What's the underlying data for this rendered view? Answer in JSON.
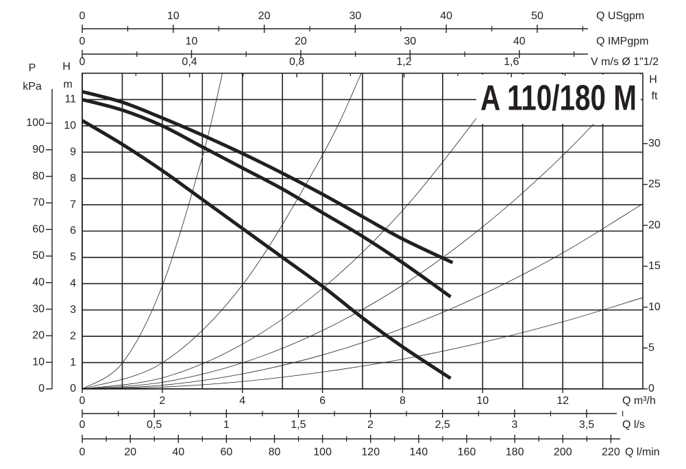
{
  "chart_data": {
    "type": "line",
    "title": "A 110/180 M",
    "xlabel": "Q m³/h",
    "xlim": [
      0,
      14
    ],
    "xticks": [
      0,
      2,
      4,
      6,
      8,
      10,
      12
    ],
    "xminor": [
      1,
      3,
      5,
      7,
      9,
      11,
      13
    ],
    "ylabel": "H",
    "yunit": "m",
    "ylim": [
      0,
      12
    ],
    "yticks": [
      0,
      1,
      2,
      3,
      4,
      5,
      6,
      7,
      8,
      9,
      10,
      11
    ],
    "grid": true,
    "series": [
      {
        "color": "#231f20",
        "width": 5,
        "x": [
          0,
          1,
          2,
          3,
          4,
          5,
          6,
          7,
          8,
          9.25
        ],
        "values": [
          11.3,
          10.9,
          10.3,
          9.65,
          8.95,
          8.2,
          7.4,
          6.55,
          5.7,
          4.8
        ]
      },
      {
        "color": "#231f20",
        "width": 5,
        "x": [
          0,
          1,
          2,
          3,
          4,
          5,
          6,
          7,
          8,
          9.2
        ],
        "values": [
          11.0,
          10.6,
          10.0,
          9.2,
          8.4,
          7.6,
          6.7,
          5.8,
          4.8,
          3.5
        ]
      },
      {
        "color": "#231f20",
        "width": 5,
        "x": [
          0,
          1,
          2,
          3,
          4,
          5,
          6,
          7,
          8,
          9.2
        ],
        "values": [
          10.2,
          9.3,
          8.3,
          7.2,
          6.1,
          5.0,
          3.9,
          2.7,
          1.6,
          0.4
        ]
      },
      {
        "color": "#231f20",
        "width": 0.8,
        "x": [
          0,
          1,
          2,
          3,
          3.5
        ],
        "values": [
          0,
          0.98,
          3.92,
          8.82,
          12.0
        ]
      },
      {
        "color": "#231f20",
        "width": 0.8,
        "x": [
          0,
          2,
          4,
          6,
          6.97
        ],
        "values": [
          0,
          0.99,
          3.95,
          8.89,
          12.0
        ]
      },
      {
        "color": "#231f20",
        "width": 0.8,
        "x": [
          0,
          2,
          4,
          6,
          8,
          10,
          10.64
        ],
        "values": [
          0,
          0.42,
          1.7,
          3.82,
          6.78,
          10.6,
          12.0
        ]
      },
      {
        "color": "#231f20",
        "width": 0.8,
        "x": [
          0,
          2,
          4,
          6,
          8,
          10,
          12,
          13.96
        ],
        "values": [
          0,
          0.25,
          0.99,
          2.22,
          3.94,
          6.16,
          8.87,
          12.0
        ]
      },
      {
        "color": "#231f20",
        "width": 0.8,
        "x": [
          0,
          2,
          4,
          6,
          8,
          10,
          12,
          14
        ],
        "values": [
          0,
          0.14,
          0.57,
          1.29,
          2.3,
          3.59,
          5.17,
          7.04
        ]
      },
      {
        "color": "#231f20",
        "width": 0.8,
        "x": [
          0,
          2,
          4,
          6,
          8,
          10,
          12,
          14
        ],
        "values": [
          0,
          0.07,
          0.28,
          0.64,
          1.13,
          1.77,
          2.55,
          3.47
        ]
      }
    ],
    "top_axes": [
      {
        "label": "Q USgpm",
        "lim": [
          0,
          61.6
        ],
        "ticks": [
          0,
          10,
          20,
          30,
          40,
          50
        ],
        "minor": [
          5,
          15,
          25,
          35,
          45,
          55
        ]
      },
      {
        "label": "Q IMPgpm",
        "lim": [
          0,
          51.3
        ],
        "ticks": [
          0,
          10,
          20,
          30,
          40
        ],
        "minor": [
          5,
          15,
          25,
          35,
          45
        ]
      },
      {
        "label": "V m/s Ø 1\"1/2",
        "lim": [
          0,
          2.09
        ],
        "ticks": [
          0,
          {
            "value": 0.4,
            "label": "0,4"
          },
          {
            "value": 0.8,
            "label": "0,8"
          },
          {
            "value": 1.2,
            "label": "1,2"
          },
          {
            "value": 1.6,
            "label": "1,6"
          }
        ],
        "minor": [
          0.2,
          0.6,
          1.0,
          1.4,
          1.8
        ]
      }
    ],
    "bottom_axes": [
      {
        "label": "Q l/s",
        "lim": [
          0,
          3.89
        ],
        "ticks": [
          0,
          {
            "value": 0.5,
            "label": "0,5"
          },
          1,
          {
            "value": 1.5,
            "label": "1,5"
          },
          2,
          {
            "value": 2.5,
            "label": "2,5"
          },
          3,
          {
            "value": 3.5,
            "label": "3,5"
          }
        ],
        "minor": [
          0.25,
          0.75,
          1.25,
          1.75,
          2.25,
          2.75,
          3.25,
          3.75
        ]
      },
      {
        "label": "Q l/min",
        "lim": [
          0,
          233.3
        ],
        "ticks": [
          0,
          20,
          40,
          60,
          80,
          100,
          120,
          140,
          160,
          180,
          200,
          220
        ],
        "minor": [
          10,
          30,
          50,
          70,
          90,
          110,
          130,
          150,
          170,
          190,
          210
        ]
      }
    ],
    "left_axis": {
      "label": "P",
      "unit": "kPa",
      "lim": [
        0,
        118.8
      ],
      "ticks": [
        0,
        10,
        20,
        30,
        40,
        50,
        60,
        70,
        80,
        90,
        100
      ]
    },
    "right_axis": {
      "label": "H",
      "unit": "ft",
      "lim": [
        0,
        38.6
      ],
      "ticks": [
        0,
        5,
        10,
        15,
        20,
        25,
        30
      ]
    }
  }
}
